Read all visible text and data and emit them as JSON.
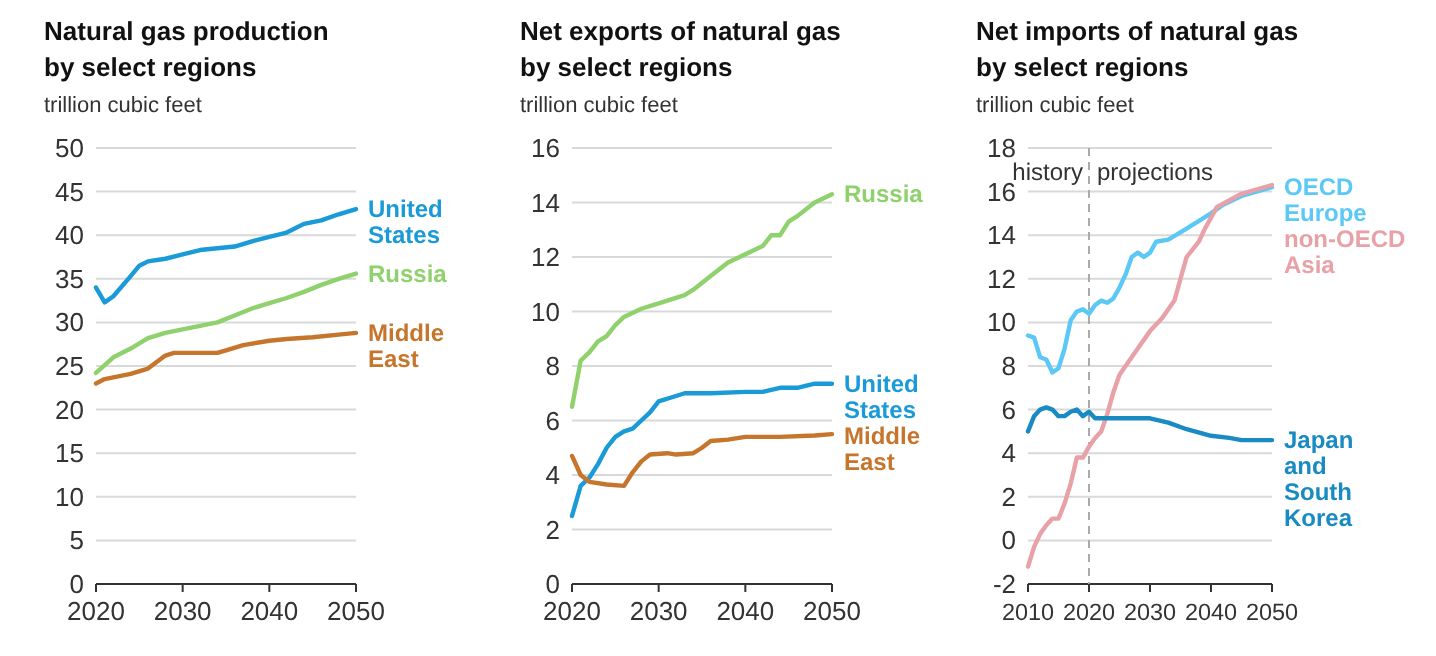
{
  "chart_data": [
    {
      "type": "line",
      "title": "Natural gas production\nby select regions",
      "ylabel": "trillion cubic feet",
      "xlim": [
        2020,
        2050
      ],
      "xticks": [
        2020,
        2030,
        2040,
        2050
      ],
      "ylim": [
        0,
        50
      ],
      "yticks": [
        0,
        5,
        10,
        15,
        20,
        25,
        30,
        35,
        40,
        45,
        50
      ],
      "grid": "y",
      "legend": false,
      "marker": "none",
      "line_style": "solid",
      "series": [
        {
          "name": "United States",
          "color": "#1a9ad6",
          "x": [
            2020,
            2021,
            2022,
            2024,
            2025,
            2026,
            2028,
            2030,
            2032,
            2034,
            2036,
            2038,
            2040,
            2042,
            2044,
            2046,
            2048,
            2050
          ],
          "values": [
            34,
            32.3,
            33,
            35.3,
            36.5,
            37,
            37.3,
            37.8,
            38.3,
            38.5,
            38.7,
            39.3,
            39.8,
            40.3,
            41.3,
            41.7,
            42.4,
            43
          ]
        },
        {
          "name": "Russia",
          "color": "#8fd16d",
          "x": [
            2020,
            2022,
            2024,
            2026,
            2028,
            2030,
            2032,
            2034,
            2036,
            2038,
            2040,
            2042,
            2044,
            2046,
            2048,
            2050
          ],
          "values": [
            24.2,
            26,
            27,
            28.2,
            28.8,
            29.2,
            29.6,
            30,
            30.8,
            31.6,
            32.2,
            32.8,
            33.5,
            34.3,
            35,
            35.6
          ]
        },
        {
          "name": "Middle East",
          "color": "#c6762c",
          "x": [
            2020,
            2021,
            2024,
            2026,
            2028,
            2029,
            2034,
            2035,
            2037,
            2040,
            2042,
            2045,
            2048,
            2050
          ],
          "values": [
            23,
            23.5,
            24.1,
            24.7,
            26.2,
            26.5,
            26.5,
            26.8,
            27.4,
            27.9,
            28.1,
            28.3,
            28.6,
            28.8
          ]
        }
      ]
    },
    {
      "type": "line",
      "title": "Net exports of natural gas\nby select regions",
      "ylabel": "trillion cubic feet",
      "xlim": [
        2020,
        2050
      ],
      "xticks": [
        2020,
        2030,
        2040,
        2050
      ],
      "ylim": [
        0,
        16
      ],
      "yticks": [
        0,
        2,
        4,
        6,
        8,
        10,
        12,
        14,
        16
      ],
      "grid": "y",
      "legend": false,
      "marker": "none",
      "line_style": "solid",
      "series": [
        {
          "name": "Russia",
          "color": "#8fd16d",
          "x": [
            2020,
            2021,
            2022,
            2023,
            2024,
            2025,
            2026,
            2028,
            2030,
            2032,
            2033,
            2034,
            2036,
            2038,
            2040,
            2042,
            2043,
            2044,
            2045,
            2046,
            2048,
            2050
          ],
          "values": [
            6.5,
            8.2,
            8.5,
            8.9,
            9.1,
            9.5,
            9.8,
            10.1,
            10.3,
            10.5,
            10.6,
            10.8,
            11.3,
            11.8,
            12.1,
            12.4,
            12.8,
            12.8,
            13.3,
            13.5,
            14,
            14.3
          ]
        },
        {
          "name": "United States",
          "color": "#1a9ad6",
          "x": [
            2020,
            2021,
            2022,
            2023,
            2024,
            2025,
            2026,
            2027,
            2028,
            2029,
            2030,
            2032,
            2033,
            2036,
            2040,
            2042,
            2044,
            2046,
            2048,
            2050
          ],
          "values": [
            2.5,
            3.6,
            3.9,
            4.4,
            5,
            5.4,
            5.6,
            5.7,
            6,
            6.3,
            6.7,
            6.9,
            7,
            7,
            7.05,
            7.05,
            7.2,
            7.2,
            7.35,
            7.35
          ]
        },
        {
          "name": "Middle East",
          "color": "#c6762c",
          "x": [
            2020,
            2021,
            2022,
            2024,
            2026,
            2027,
            2028,
            2029,
            2031,
            2032,
            2034,
            2035,
            2036,
            2038,
            2040,
            2044,
            2048,
            2050
          ],
          "values": [
            4.7,
            4,
            3.75,
            3.65,
            3.6,
            4.1,
            4.5,
            4.75,
            4.8,
            4.75,
            4.8,
            5,
            5.25,
            5.3,
            5.4,
            5.4,
            5.45,
            5.5
          ]
        }
      ]
    },
    {
      "type": "line",
      "title": "Net imports of natural gas\nby select regions",
      "ylabel": "trillion cubic feet",
      "xlim": [
        2010,
        2050
      ],
      "xticks": [
        2010,
        2020,
        2030,
        2040,
        2050
      ],
      "ylim": [
        -2,
        18
      ],
      "yticks": [
        -2,
        0,
        2,
        4,
        6,
        8,
        10,
        12,
        14,
        16,
        18
      ],
      "grid": "y",
      "legend": false,
      "marker": "none",
      "line_style": "solid",
      "ref_lines": [
        {
          "axis": "x",
          "value": 2020,
          "color": "#aaaaaa",
          "line_style": "dashed"
        }
      ],
      "annotations": [
        "history",
        "projections"
      ],
      "series": [
        {
          "name": "OECD Europe",
          "color": "#5bc8f5",
          "x": [
            2010,
            2011,
            2012,
            2013,
            2014,
            2015,
            2016,
            2017,
            2018,
            2019,
            2020,
            2021,
            2022,
            2023,
            2024,
            2025,
            2026,
            2027,
            2028,
            2029,
            2030,
            2031,
            2033,
            2036,
            2040,
            2042,
            2045,
            2050
          ],
          "values": [
            9.4,
            9.3,
            8.4,
            8.3,
            7.7,
            7.9,
            8.8,
            10.1,
            10.5,
            10.6,
            10.4,
            10.8,
            11,
            10.9,
            11.1,
            11.6,
            12.2,
            13,
            13.2,
            13,
            13.2,
            13.7,
            13.8,
            14.3,
            15,
            15.4,
            15.8,
            16.2
          ]
        },
        {
          "name": "non-OECD Asia",
          "color": "#e8a1a6",
          "x": [
            2010,
            2011,
            2012,
            2013,
            2014,
            2015,
            2016,
            2017,
            2018,
            2019,
            2020,
            2021,
            2022,
            2023,
            2024,
            2025,
            2026,
            2028,
            2030,
            2032,
            2034,
            2036,
            2038,
            2039,
            2041,
            2045,
            2050
          ],
          "values": [
            -1.2,
            -0.3,
            0.3,
            0.7,
            1,
            1,
            1.7,
            2.6,
            3.8,
            3.8,
            4.3,
            4.7,
            5,
            5.8,
            6.8,
            7.6,
            8,
            8.8,
            9.6,
            10.2,
            11,
            13,
            13.7,
            14.3,
            15.3,
            15.9,
            16.3
          ]
        },
        {
          "name": "Japan and South Korea",
          "color": "#1a8ac2",
          "x": [
            2010,
            2011,
            2012,
            2013,
            2014,
            2015,
            2016,
            2017,
            2018,
            2019,
            2020,
            2021,
            2030,
            2033,
            2036,
            2040,
            2043,
            2045,
            2050
          ],
          "values": [
            5,
            5.7,
            6,
            6.1,
            6,
            5.7,
            5.7,
            5.9,
            6,
            5.7,
            5.9,
            5.6,
            5.6,
            5.4,
            5.1,
            4.8,
            4.7,
            4.6,
            4.6
          ]
        }
      ]
    }
  ]
}
